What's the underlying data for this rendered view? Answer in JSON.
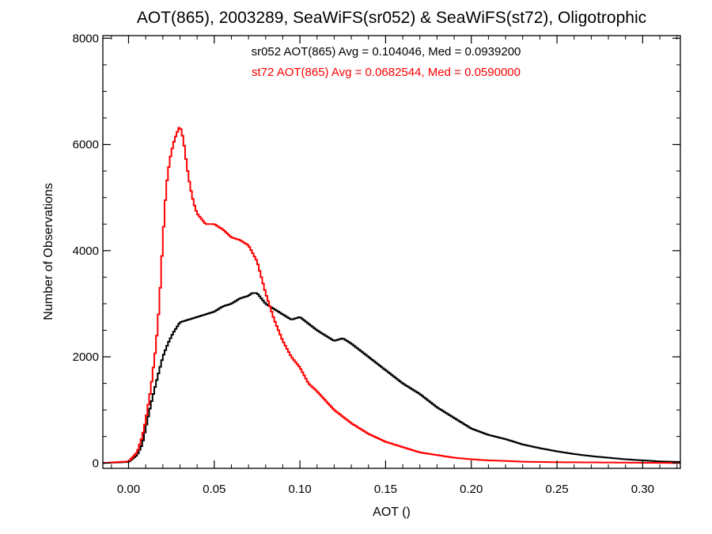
{
  "chart_data": {
    "type": "line",
    "title": "AOT(865), 2003289, SeaWiFS(sr052) & SeaWiFS(st72), Oligotrophic",
    "xlabel": "AOT ()",
    "ylabel": "Number of Observations",
    "xlim": [
      -0.015,
      0.322
    ],
    "ylim": [
      -100,
      8050
    ],
    "xticks": [
      0.0,
      0.05,
      0.1,
      0.15,
      0.2,
      0.25,
      0.3
    ],
    "xtick_labels": [
      "0.00",
      "0.05",
      "0.10",
      "0.15",
      "0.20",
      "0.25",
      "0.30"
    ],
    "yticks": [
      0,
      2000,
      4000,
      6000,
      8000
    ],
    "ytick_labels": [
      "0",
      "2000",
      "4000",
      "6000",
      "8000"
    ],
    "grid": false,
    "legend": "none",
    "annotations": [
      {
        "text": "sr052 AOT(865) Avg = 0.104046, Med = 0.0939200",
        "color": "#000000"
      },
      {
        "text": "st72 AOT(865) Avg = 0.0682544, Med = 0.0590000",
        "color": "#ff0000"
      }
    ],
    "series": [
      {
        "color": "#000000",
        "x": [
          -0.015,
          0.0,
          0.005,
          0.008,
          0.01,
          0.013,
          0.016,
          0.02,
          0.023,
          0.026,
          0.03,
          0.035,
          0.04,
          0.045,
          0.05,
          0.055,
          0.06,
          0.065,
          0.07,
          0.072,
          0.075,
          0.08,
          0.085,
          0.09,
          0.095,
          0.1,
          0.11,
          0.12,
          0.125,
          0.13,
          0.14,
          0.15,
          0.16,
          0.17,
          0.18,
          0.19,
          0.2,
          0.21,
          0.22,
          0.23,
          0.24,
          0.25,
          0.26,
          0.27,
          0.28,
          0.29,
          0.3,
          0.31,
          0.322
        ],
        "y": [
          0,
          20,
          150,
          350,
          650,
          1100,
          1500,
          2000,
          2250,
          2450,
          2650,
          2700,
          2750,
          2800,
          2850,
          2950,
          3000,
          3100,
          3150,
          3200,
          3200,
          3000,
          2900,
          2800,
          2700,
          2750,
          2500,
          2300,
          2350,
          2250,
          2000,
          1750,
          1500,
          1300,
          1050,
          850,
          650,
          530,
          450,
          350,
          280,
          220,
          170,
          130,
          100,
          70,
          50,
          30,
          20
        ]
      },
      {
        "color": "#ff0000",
        "x": [
          -0.015,
          0.0,
          0.005,
          0.008,
          0.01,
          0.013,
          0.016,
          0.018,
          0.02,
          0.022,
          0.024,
          0.026,
          0.028,
          0.03,
          0.032,
          0.034,
          0.036,
          0.038,
          0.04,
          0.045,
          0.05,
          0.055,
          0.06,
          0.065,
          0.07,
          0.075,
          0.08,
          0.085,
          0.09,
          0.095,
          0.1,
          0.105,
          0.11,
          0.12,
          0.13,
          0.14,
          0.15,
          0.16,
          0.17,
          0.18,
          0.19,
          0.2,
          0.21,
          0.22,
          0.23,
          0.25,
          0.28,
          0.3,
          0.322
        ],
        "y": [
          0,
          30,
          200,
          500,
          800,
          1400,
          2200,
          3000,
          4200,
          5200,
          5700,
          6000,
          6200,
          6350,
          6100,
          5600,
          5200,
          4900,
          4700,
          4500,
          4500,
          4400,
          4250,
          4200,
          4100,
          3800,
          3200,
          2700,
          2300,
          2000,
          1800,
          1500,
          1350,
          1000,
          750,
          550,
          400,
          300,
          200,
          150,
          100,
          70,
          50,
          40,
          25,
          15,
          10,
          5,
          0
        ]
      }
    ]
  }
}
